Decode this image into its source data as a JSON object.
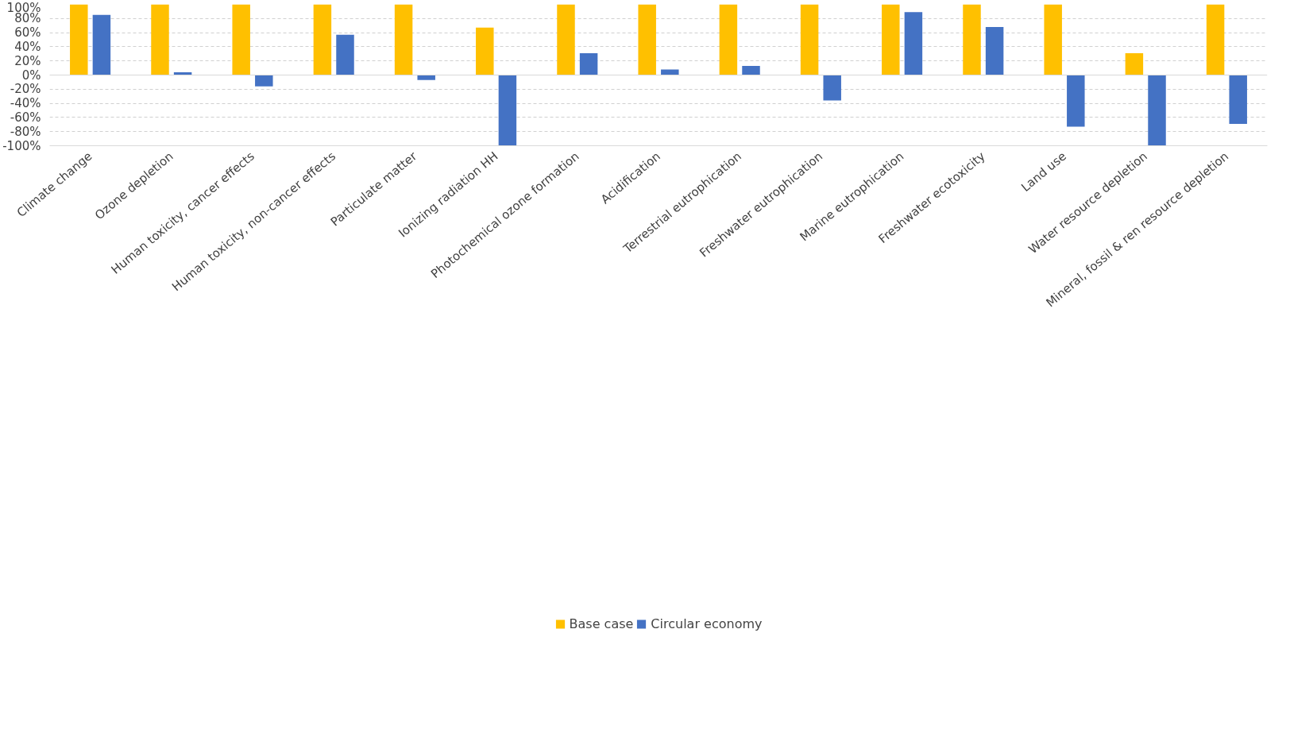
{
  "chart_data": {
    "type": "bar",
    "categories": [
      "Climate change",
      "Ozone depletion",
      "Human toxicity, cancer effects",
      "Human toxicity, non-cancer effects",
      "Particulate matter",
      "Ionizing radiation HH",
      "Photochemical ozone formation",
      "Acidification",
      "Terrestrial eutrophication",
      "Freshwater eutrophication",
      "Marine eutrophication",
      "Freshwater ecotoxicity",
      "Land use",
      "Water resource depletion",
      "Mineral, fossil & ren resource depletion"
    ],
    "series": [
      {
        "name": "Base case",
        "color": "#ffc000",
        "values": [
          100,
          100,
          100,
          100,
          100,
          67,
          100,
          100,
          100,
          100,
          100,
          100,
          100,
          31,
          100
        ]
      },
      {
        "name": "Circular economy",
        "color": "#4472c4",
        "values": [
          85,
          4,
          -16,
          57,
          -7,
          -100,
          31,
          8,
          13,
          -36,
          89,
          68,
          -73,
          -100,
          -69
        ]
      }
    ],
    "ylim": [
      -100,
      100
    ],
    "yticks": [
      {
        "value": -100,
        "label": "-100%"
      },
      {
        "value": -80,
        "label": "-80%"
      },
      {
        "value": -60,
        "label": "-60%"
      },
      {
        "value": -40,
        "label": "-40%"
      },
      {
        "value": -20,
        "label": "-20%"
      },
      {
        "value": 0,
        "label": "0%"
      },
      {
        "value": 20,
        "label": "20%"
      },
      {
        "value": 40,
        "label": "40%"
      },
      {
        "value": 60,
        "label": "60%"
      },
      {
        "value": 80,
        "label": "80%"
      },
      {
        "value": 100,
        "label": "100%"
      }
    ],
    "grid": "y",
    "legend": "bottom"
  }
}
